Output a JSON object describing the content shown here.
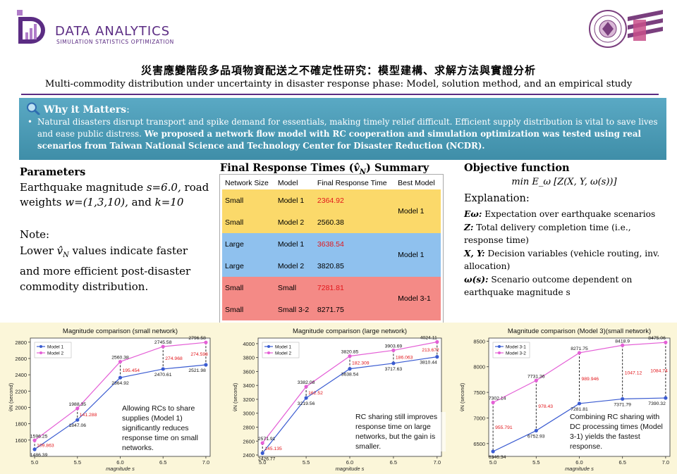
{
  "header": {
    "logo_title": "DATA ANALYTICS",
    "logo_subtitle": "SIMULATION STATISTICS OPTIMIZATION",
    "title_zh": "災害應變階段多品項物資配送之不確定性研究：模型建構、求解方法與實證分析",
    "title_en": "Multi-commodity distribution under uncertainty in disaster response phase: Model, solution method, and an empirical study"
  },
  "why": {
    "label": "Why it Matters",
    "colon": ":",
    "text_plain": "Natural disasters disrupt transport and spike demand for essentials, making timely relief difficult. Efficient supply distribution is vital to save lives and ease public distress. ",
    "text_bold": "We proposed a network flow model with RC cooperation and simulation optimization was tested using real scenarios from Taiwan National Science and Technology Center for Disaster Reduction (NCDR).",
    "bullet": "•"
  },
  "parameters": {
    "heading": "Parameters",
    "line1": "Earthquake magnitude s=6.0, road weights w=(1,3,10), and k=10",
    "note_label": "Note:",
    "note_text": "Lower v̂N values indicate faster and more efficient post-disaster commodity distribution."
  },
  "summary_table": {
    "title": "Final Response Times (v̂N) Summary",
    "headers": [
      "Network Size",
      "Model",
      "Final Response Time",
      "Best Model"
    ],
    "rows": [
      {
        "size": "Small",
        "model": "Model 1",
        "time": "2364.92",
        "best": "Model 1",
        "highlight": true
      },
      {
        "size": "Small",
        "model": "Model 2",
        "time": "2560.38",
        "best": "",
        "highlight": false
      },
      {
        "size": "Large",
        "model": "Model 1",
        "time": "3638.54",
        "best": "Model 1",
        "highlight": true
      },
      {
        "size": "Large",
        "model": "Model 2",
        "time": "3820.85",
        "best": "",
        "highlight": false
      },
      {
        "size": "Small",
        "model": "Small",
        "time": "7281.81",
        "best": "Model 3-1",
        "highlight": true
      },
      {
        "size": "Small",
        "model": "Small 3-2",
        "time": "8271.75",
        "best": "",
        "highlight": false
      }
    ]
  },
  "objective": {
    "heading": "Objective function",
    "formula": "min E_ω [Z(X, Y, ω(s))]",
    "explanation_label": "Explanation:",
    "items": [
      {
        "sym": "Eω:",
        "text": " Expectation over earthquake scenarios"
      },
      {
        "sym": "Z:",
        "text": " Total delivery completion time (i.e., response time)"
      },
      {
        "sym": "X, Y:",
        "text": " Decision variables (vehicle routing, inv. allocation)"
      },
      {
        "sym": "ω(s):",
        "text": " Scenario outcome dependent on earthquake magnitude s"
      }
    ]
  },
  "chart_data": [
    {
      "type": "line",
      "title": "Magnitude comparison (small network)",
      "xlabel": "magnitude s",
      "ylabel": "v̂N (second)",
      "x": [
        5.0,
        5.5,
        6.0,
        6.5,
        7.0
      ],
      "xlim": [
        4.95,
        7.05
      ],
      "ylim": [
        1400,
        2850
      ],
      "yticks": [
        1600,
        1800,
        2000,
        2200,
        2400,
        2600,
        2800
      ],
      "series": [
        {
          "name": "Model 1",
          "color": "#3a5bd1",
          "values": [
            1486.39,
            1847.06,
            2364.92,
            2470.61,
            2521.98
          ]
        },
        {
          "name": "Model 2",
          "color": "#e45fd6",
          "values": [
            1596.25,
            1988.35,
            2560.38,
            2745.58,
            2796.58
          ]
        }
      ],
      "diffs": [
        "109.863",
        "141.288",
        "195.454",
        "274.968",
        "274.598"
      ],
      "annotation": "Allowing RCs to share supplies (Model 1) significantly reduces response time on small networks."
    },
    {
      "type": "line",
      "title": "Magnitude comparison (large network)",
      "xlabel": "magnitude s",
      "ylabel": "v̂N (second)",
      "x": [
        5.0,
        5.5,
        6.0,
        6.5,
        7.0
      ],
      "xlim": [
        4.95,
        7.05
      ],
      "ylim": [
        2380,
        4080
      ],
      "yticks": [
        2400,
        2600,
        2800,
        3000,
        3200,
        3400,
        3600,
        3800,
        4000
      ],
      "series": [
        {
          "name": "Model 1",
          "color": "#3a5bd1",
          "values": [
            2426.77,
            3219.56,
            3638.54,
            3717.63,
            3810.44
          ]
        },
        {
          "name": "Model 2",
          "color": "#e45fd6",
          "values": [
            2571.91,
            3382.08,
            3820.85,
            3903.69,
            4024.11
          ]
        }
      ],
      "diffs": [
        "145.135",
        "162.52",
        "182.309",
        "186.063",
        "213.672"
      ],
      "annotation": "RC sharing still improves response time on large networks, but the gain is smaller."
    },
    {
      "type": "line",
      "title": "Magnitude comparison (Model 3)(small network)",
      "xlabel": "magnitude s",
      "ylabel": "v̂N (second)",
      "x": [
        5.0,
        5.5,
        6.0,
        6.5,
        7.0
      ],
      "xlim": [
        4.95,
        7.05
      ],
      "ylim": [
        6250,
        8560
      ],
      "yticks": [
        6500,
        7000,
        7500,
        8000,
        8500
      ],
      "series": [
        {
          "name": "Model 3-1",
          "color": "#3a5bd1",
          "values": [
            6346.34,
            6752.93,
            7281.81,
            7371.79,
            7390.32
          ]
        },
        {
          "name": "Model 3-2",
          "color": "#e45fd6",
          "values": [
            7302.14,
            7731.36,
            8271.75,
            8418.9,
            8475.06
          ]
        }
      ],
      "diffs": [
        "955.791",
        "978.43",
        "989.946",
        "1047.12",
        "1084.74"
      ],
      "annotation": "Combining RC sharing with DC processing times (Model 3-1) yields the fastest response."
    }
  ]
}
